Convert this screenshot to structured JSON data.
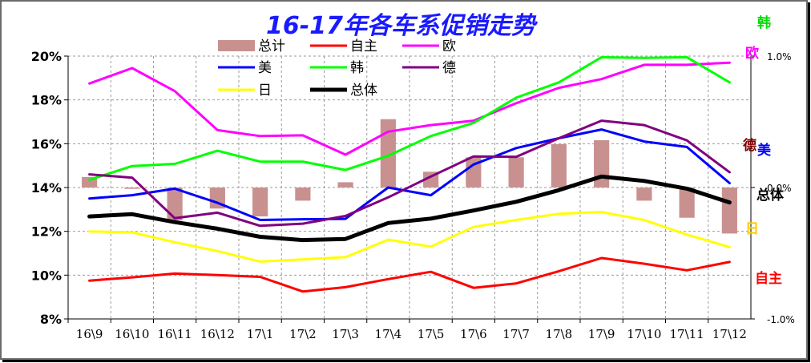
{
  "chart_data": {
    "type": "line",
    "title": "16-17年各车系促销走势",
    "categories": [
      "16\\9",
      "16\\10",
      "16\\11",
      "16\\12",
      "17\\1",
      "17\\2",
      "17\\3",
      "17\\4",
      "17\\5",
      "17\\6",
      "17\\7",
      "17\\8",
      "17\\9",
      "17\\10",
      "17\\11",
      "17\\12"
    ],
    "y_left": {
      "min": 8,
      "max": 20,
      "step": 2,
      "tick_labels": [
        "8%",
        "10%",
        "12%",
        "14%",
        "16%",
        "18%",
        "20%"
      ]
    },
    "y_right": {
      "min": -1.0,
      "max": 1.0,
      "tick_labels": [
        "-1.0%",
        "0.0%",
        "1.0%"
      ]
    },
    "grid": true,
    "legend_position": "top",
    "bar_series": {
      "name": "总计",
      "axis": "right",
      "color": "#c8918f",
      "values": [
        0.08,
        -0.01,
        -0.25,
        -0.16,
        -0.22,
        -0.1,
        0.04,
        0.52,
        0.12,
        0.23,
        0.23,
        0.33,
        0.36,
        -0.1,
        -0.23,
        -0.35
      ]
    },
    "series": [
      {
        "name": "自主",
        "color": "#ff0000",
        "values": [
          9.75,
          9.9,
          10.07,
          10.0,
          9.92,
          9.25,
          9.45,
          9.82,
          10.15,
          9.42,
          9.62,
          10.18,
          10.78,
          10.52,
          10.22,
          10.6
        ]
      },
      {
        "name": "欧",
        "color": "#ff00ff",
        "values": [
          18.75,
          19.45,
          18.4,
          16.62,
          16.35,
          16.38,
          15.5,
          16.55,
          16.85,
          17.05,
          17.85,
          18.55,
          18.95,
          19.6,
          19.6,
          19.7
        ]
      },
      {
        "name": "美",
        "color": "#0000ff",
        "values": [
          13.5,
          13.65,
          13.95,
          13.3,
          12.52,
          12.55,
          12.57,
          14.0,
          13.65,
          15.05,
          15.8,
          16.25,
          16.65,
          16.1,
          15.85,
          14.2
        ]
      },
      {
        "name": "韩",
        "color": "#00ff00",
        "values": [
          14.35,
          14.98,
          15.08,
          15.68,
          15.18,
          15.18,
          14.8,
          15.45,
          16.35,
          16.95,
          18.1,
          18.8,
          19.95,
          19.92,
          19.95,
          18.8
        ]
      },
      {
        "name": "德",
        "color": "#800080",
        "values": [
          14.6,
          14.45,
          12.6,
          12.85,
          12.25,
          12.35,
          12.7,
          13.55,
          14.5,
          15.42,
          15.4,
          16.25,
          17.05,
          16.85,
          16.15,
          14.7
        ]
      },
      {
        "name": "日",
        "color": "#ffff00",
        "values": [
          12.0,
          11.95,
          11.5,
          11.1,
          10.62,
          10.72,
          10.82,
          11.62,
          11.3,
          12.2,
          12.52,
          12.8,
          12.88,
          12.52,
          11.85,
          11.28
        ]
      },
      {
        "name": "总体",
        "color": "#000000",
        "values": [
          12.68,
          12.78,
          12.42,
          12.12,
          11.75,
          11.6,
          11.65,
          12.38,
          12.58,
          12.95,
          13.35,
          13.88,
          14.5,
          14.3,
          13.95,
          13.32
        ]
      }
    ],
    "end_labels": [
      {
        "text": "韩",
        "color": "#00dd00"
      },
      {
        "text": "欧",
        "color": "#ff00ff"
      },
      {
        "text": "德",
        "color": "#800000"
      },
      {
        "text": "美",
        "color": "#0000ff"
      },
      {
        "text": "总体",
        "color": "#000000"
      },
      {
        "text": "日",
        "color": "#ffcc00"
      },
      {
        "text": "自主",
        "color": "#ff0000"
      }
    ]
  }
}
